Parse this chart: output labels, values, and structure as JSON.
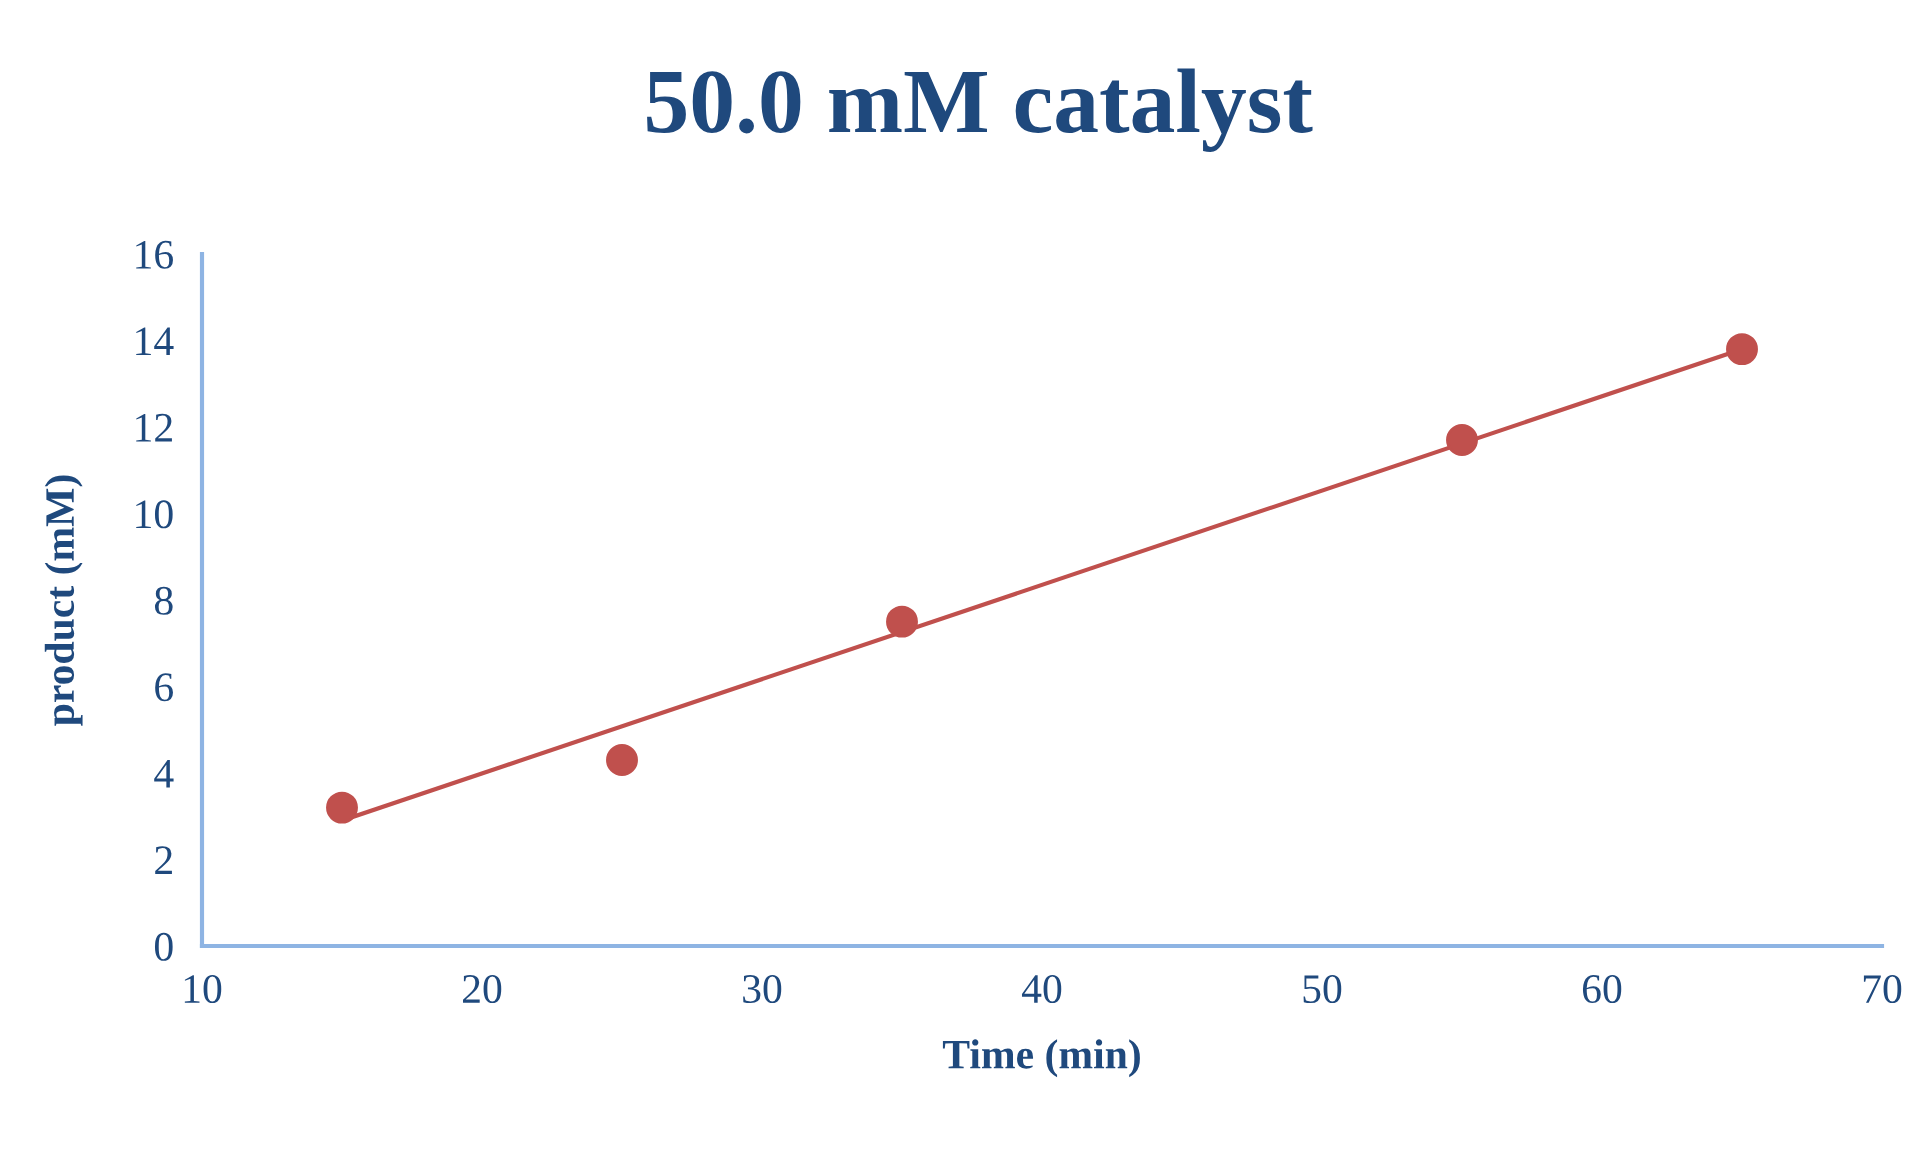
{
  "chart_data": {
    "type": "scatter",
    "title": "50.0 mM catalyst",
    "xlabel": "Time (min)",
    "ylabel": "product (mM)",
    "xlim": [
      10,
      70
    ],
    "xticks": [
      10,
      20,
      30,
      40,
      50,
      60,
      70
    ],
    "ylim": [
      0,
      16
    ],
    "yticks": [
      0,
      2,
      4,
      6,
      8,
      10,
      12,
      14,
      16
    ],
    "grid": false,
    "legend": false,
    "marker": "circle",
    "series": [
      {
        "color": "#c0504d",
        "x": [
          15,
          25,
          35,
          55,
          65
        ],
        "values": [
          3.2,
          4.3,
          7.5,
          11.7,
          13.8
        ]
      },
      {
        "type": "line",
        "color": "#c0504d",
        "x": [
          15,
          65
        ],
        "values": [
          2.9,
          13.8
        ],
        "marker": "none",
        "line_style": "solid"
      }
    ]
  }
}
